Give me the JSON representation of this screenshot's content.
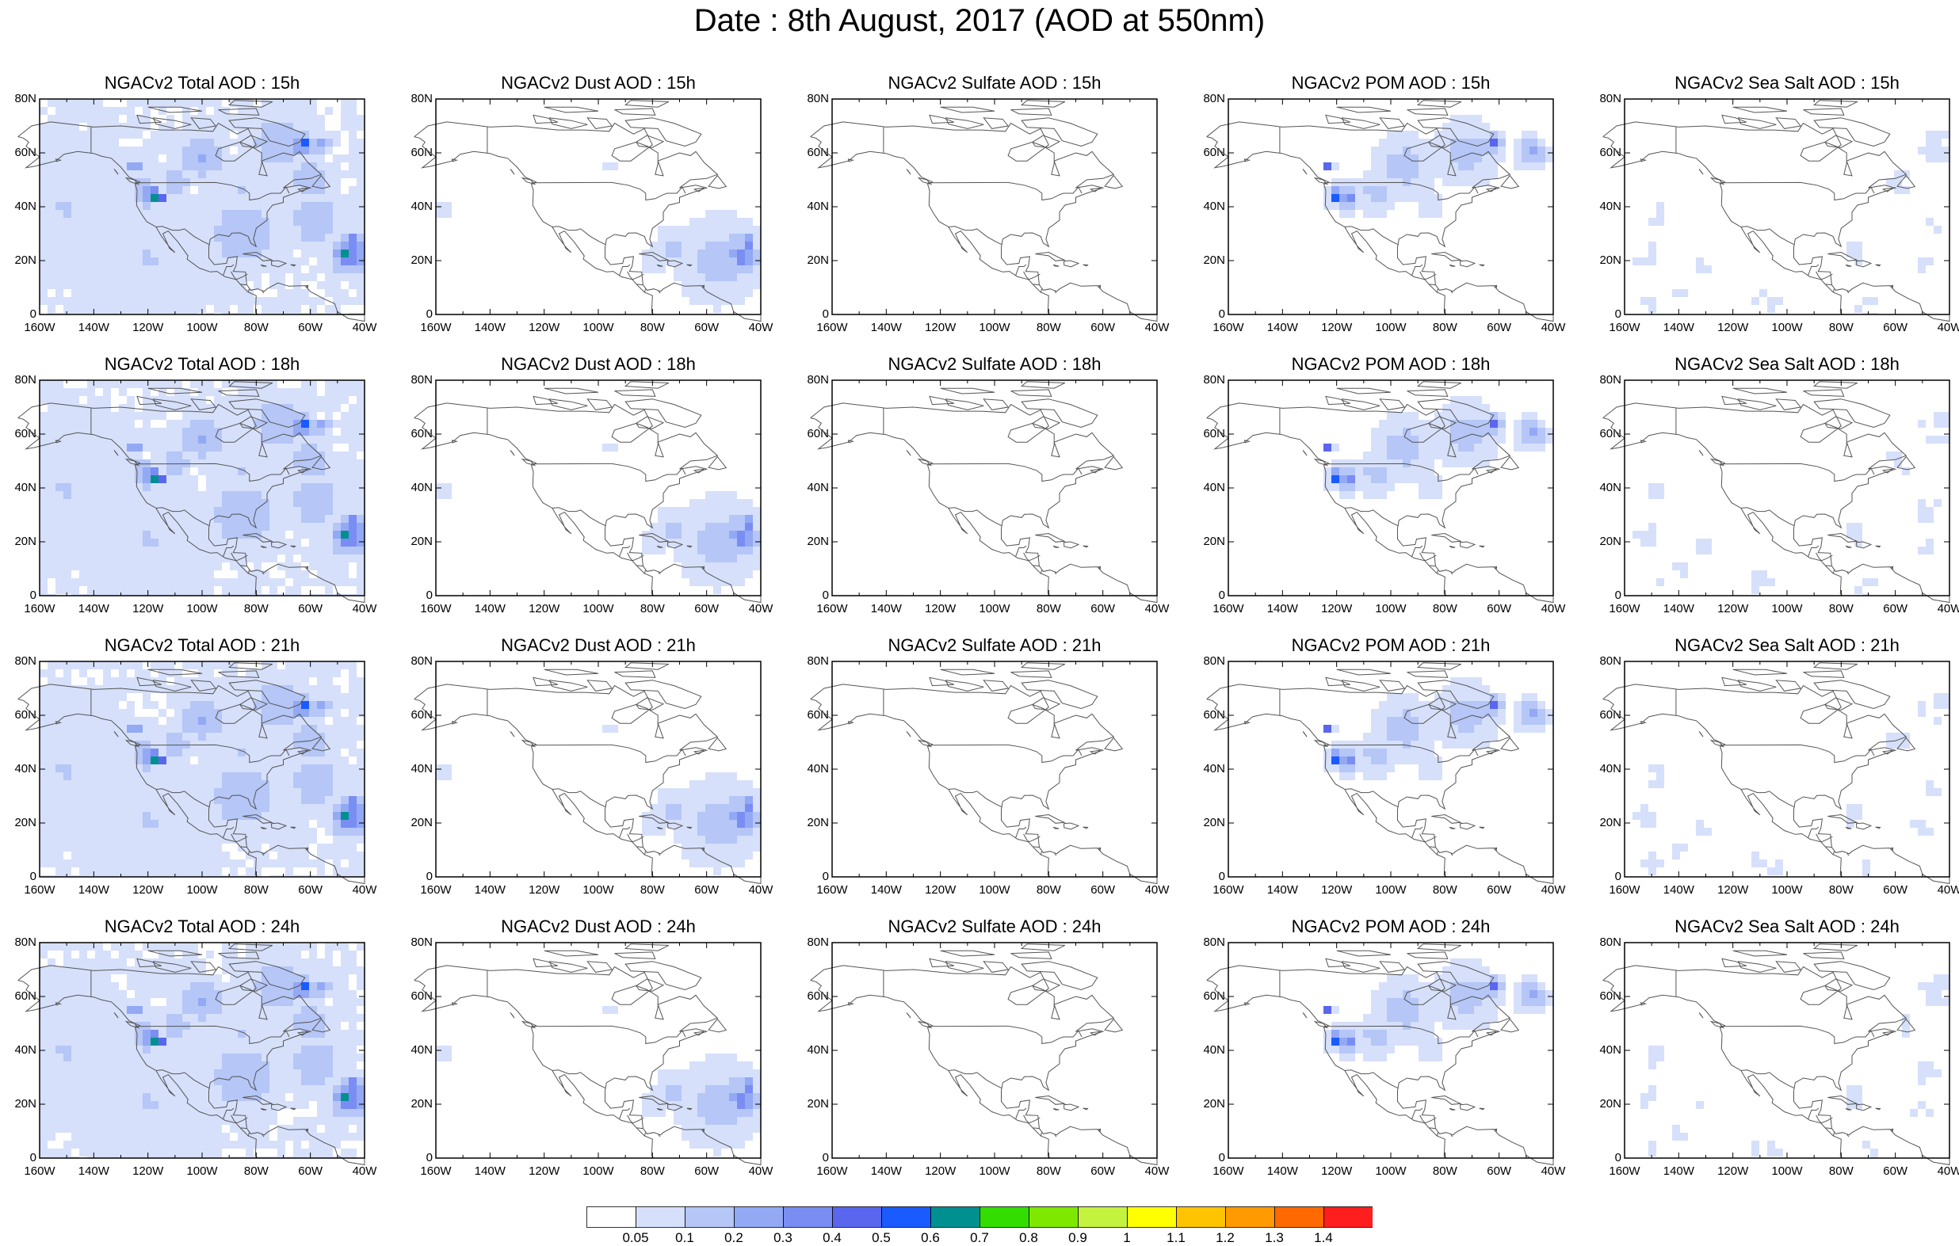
{
  "title": "Date : 8th August, 2017 (AOD at 550nm)",
  "panels": [
    {
      "title": "NGACv2 Total AOD : 15h",
      "species": "total"
    },
    {
      "title": "NGACv2 Dust AOD : 15h",
      "species": "dust"
    },
    {
      "title": "NGACv2 Sulfate AOD : 15h",
      "species": "sulfate"
    },
    {
      "title": "NGACv2 POM AOD : 15h",
      "species": "pom"
    },
    {
      "title": "NGACv2 Sea Salt AOD : 15h",
      "species": "seasalt"
    },
    {
      "title": "NGACv2 Total AOD : 18h",
      "species": "total"
    },
    {
      "title": "NGACv2 Dust AOD : 18h",
      "species": "dust"
    },
    {
      "title": "NGACv2 Sulfate AOD : 18h",
      "species": "sulfate"
    },
    {
      "title": "NGACv2 POM AOD : 18h",
      "species": "pom"
    },
    {
      "title": "NGACv2 Sea Salt AOD : 18h",
      "species": "seasalt"
    },
    {
      "title": "NGACv2 Total AOD : 21h",
      "species": "total"
    },
    {
      "title": "NGACv2 Dust AOD : 21h",
      "species": "dust"
    },
    {
      "title": "NGACv2 Sulfate AOD : 21h",
      "species": "sulfate"
    },
    {
      "title": "NGACv2 POM AOD : 21h",
      "species": "pom"
    },
    {
      "title": "NGACv2 Sea Salt AOD : 21h",
      "species": "seasalt"
    },
    {
      "title": "NGACv2 Total AOD : 24h",
      "species": "total"
    },
    {
      "title": "NGACv2 Dust AOD : 24h",
      "species": "dust"
    },
    {
      "title": "NGACv2 Sulfate AOD : 24h",
      "species": "sulfate"
    },
    {
      "title": "NGACv2 POM AOD : 24h",
      "species": "pom"
    },
    {
      "title": "NGACv2 Sea Salt  AOD : 24h",
      "species": "seasalt"
    }
  ],
  "lat_labels": [
    "80N",
    "60N",
    "40N",
    "20N",
    "0"
  ],
  "lon_labels": [
    "160W",
    "140W",
    "120W",
    "100W",
    "80W",
    "60W",
    "40W"
  ],
  "colorbar": {
    "labels": [
      "0.05",
      "0.1",
      "0.2",
      "0.3",
      "0.4",
      "0.5",
      "0.6",
      "0.7",
      "0.8",
      "0.9",
      "1",
      "1.1",
      "1.2",
      "1.3",
      "1.4"
    ],
    "colors": [
      "#ffffff",
      "#d6e0fb",
      "#b5c6f7",
      "#93a9f4",
      "#7a8df2",
      "#5a66ee",
      "#1a5bff",
      "#009090",
      "#33dd00",
      "#7fe800",
      "#c3f23f",
      "#ffff00",
      "#ffc400",
      "#ff9a00",
      "#ff6a00",
      "#ff1e1e"
    ]
  }
}
